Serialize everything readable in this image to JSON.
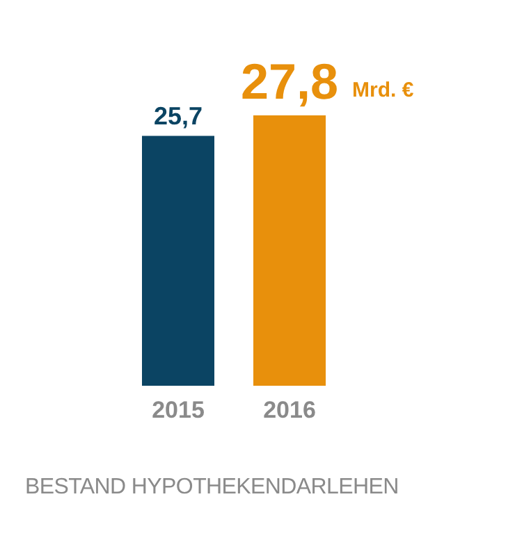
{
  "chart_data": {
    "type": "bar",
    "title": "BESTAND HYPOTHEKENDARLEHEN",
    "categories": [
      "2015",
      "2016"
    ],
    "values": [
      25.7,
      27.8
    ],
    "colors": [
      "#0b4463",
      "#e8900c"
    ],
    "value_labels": [
      "25,7",
      "27,8"
    ],
    "annotations": [
      "Mrd. €"
    ],
    "grid": false,
    "legend": false
  }
}
